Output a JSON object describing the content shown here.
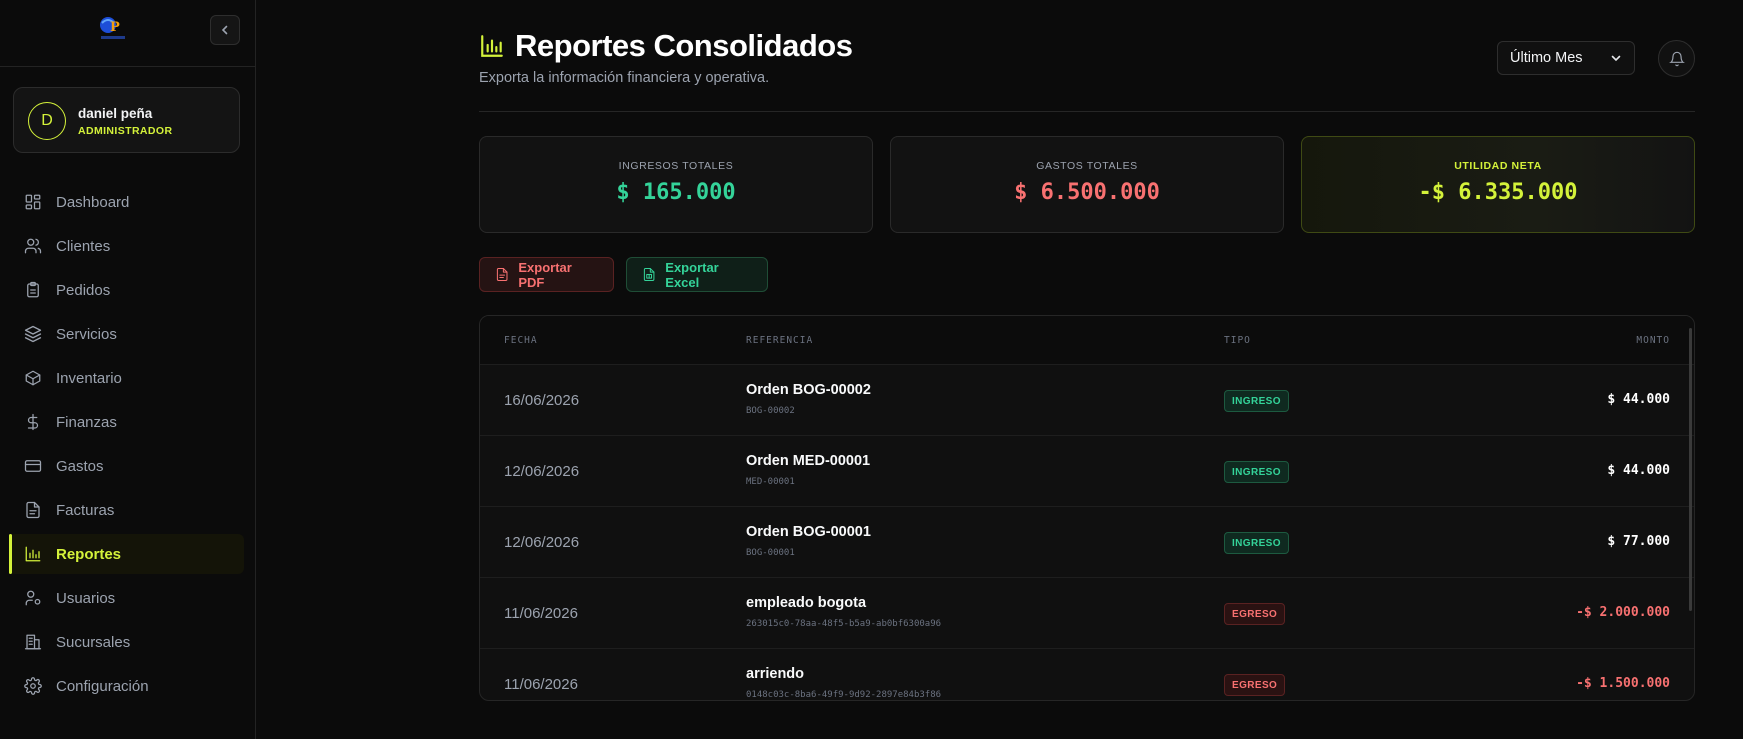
{
  "colors": {
    "accent": "#d4f23a",
    "income": "#34d399",
    "expense": "#f87171",
    "text_muted": "#9ca3af"
  },
  "sidebar": {
    "user": {
      "initial": "D",
      "name": "daniel peña",
      "role": "ADMINISTRADOR"
    },
    "items": [
      {
        "label": "Dashboard",
        "icon": "grid-icon"
      },
      {
        "label": "Clientes",
        "icon": "users-icon"
      },
      {
        "label": "Pedidos",
        "icon": "clipboard-icon"
      },
      {
        "label": "Servicios",
        "icon": "layers-icon"
      },
      {
        "label": "Inventario",
        "icon": "box-icon"
      },
      {
        "label": "Finanzas",
        "icon": "dollar-icon"
      },
      {
        "label": "Gastos",
        "icon": "credit-card-icon"
      },
      {
        "label": "Facturas",
        "icon": "file-icon"
      },
      {
        "label": "Reportes",
        "icon": "bar-chart-icon",
        "active": true
      },
      {
        "label": "Usuarios",
        "icon": "user-cog-icon"
      },
      {
        "label": "Sucursales",
        "icon": "building-icon"
      },
      {
        "label": "Configuración",
        "icon": "gear-icon"
      }
    ]
  },
  "header": {
    "title": "Reportes Consolidados",
    "subtitle": "Exporta la información financiera y operativa.",
    "period": "Último Mes"
  },
  "summary": {
    "income": {
      "label": "INGRESOS TOTALES",
      "value": "$ 165.000"
    },
    "expenses": {
      "label": "GASTOS TOTALES",
      "value": "$ 6.500.000"
    },
    "net": {
      "label": "UTILIDAD NETA",
      "value": "-$ 6.335.000"
    }
  },
  "actions": {
    "pdf": "Exportar PDF",
    "excel": "Exportar Excel"
  },
  "table": {
    "columns": {
      "date": "FECHA",
      "reference": "REFERENCIA",
      "type": "TIPO",
      "amount": "MONTO"
    },
    "rows": [
      {
        "date": "16/06/2026",
        "ref": "Orden BOG-00002",
        "sub": "BOG-00002",
        "type": "INGRESO",
        "kind": "in",
        "amount": "$ 44.000"
      },
      {
        "date": "12/06/2026",
        "ref": "Orden MED-00001",
        "sub": "MED-00001",
        "type": "INGRESO",
        "kind": "in",
        "amount": "$ 44.000"
      },
      {
        "date": "12/06/2026",
        "ref": "Orden BOG-00001",
        "sub": "BOG-00001",
        "type": "INGRESO",
        "kind": "in",
        "amount": "$ 77.000"
      },
      {
        "date": "11/06/2026",
        "ref": "empleado bogota",
        "sub": "263015c0-78aa-48f5-b5a9-ab0bf6300a96",
        "type": "EGRESO",
        "kind": "out",
        "amount": "-$ 2.000.000"
      },
      {
        "date": "11/06/2026",
        "ref": "arriendo",
        "sub": "0148c03c-8ba6-49f9-9d92-2897e84b3f86",
        "type": "EGRESO",
        "kind": "out",
        "amount": "-$ 1.500.000"
      }
    ]
  }
}
